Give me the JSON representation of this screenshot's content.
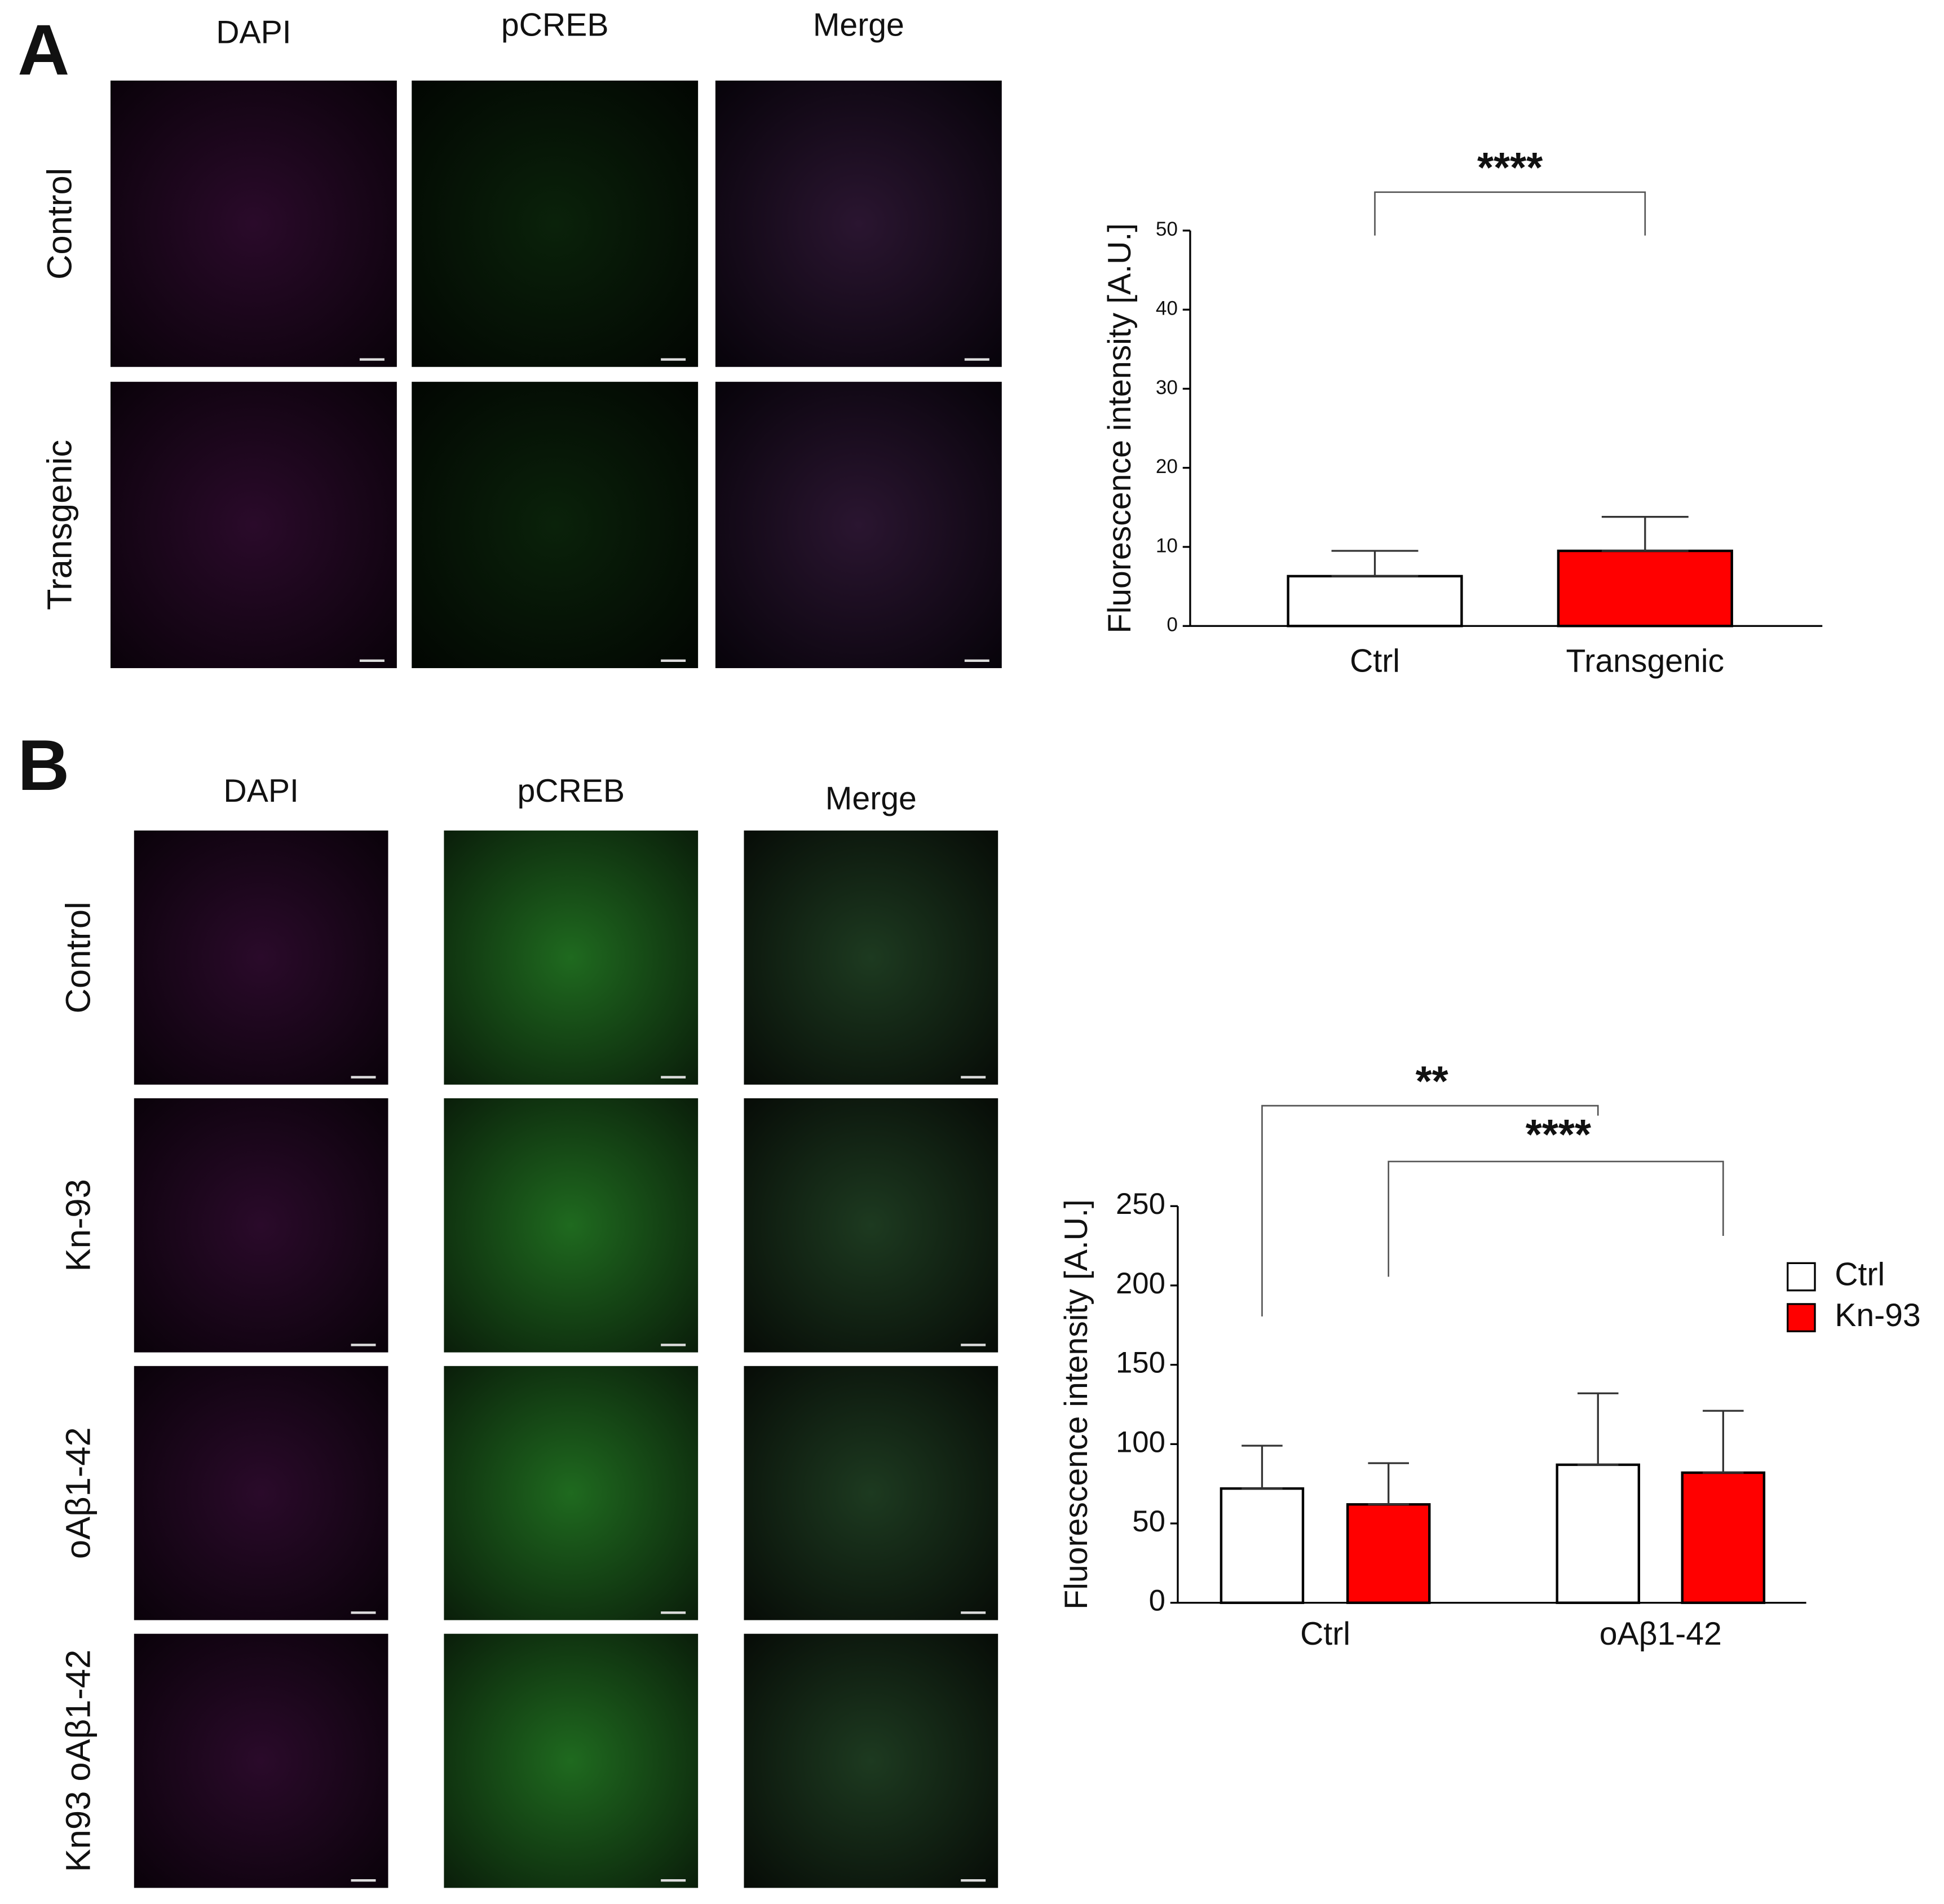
{
  "panels": [
    {
      "label": "A",
      "columns": [
        "DAPI",
        "pCREB",
        "Merge"
      ],
      "rows": [
        "Control",
        "Transgenic"
      ]
    },
    {
      "label": "B",
      "columns": [
        "DAPI",
        "pCREB",
        "Merge"
      ],
      "rows": [
        "Control",
        "Kn-93",
        "oAβ1-42",
        "Kn93 oAβ1-42"
      ]
    }
  ],
  "chart_data": [
    {
      "type": "bar",
      "ylabel": "Fluorescence intensity [A.U.]",
      "categories": [
        "Ctrl",
        "Transgenic"
      ],
      "values": [
        6.3,
        9.5
      ],
      "errors": [
        3.2,
        4.3
      ],
      "colors": [
        "#ffffff",
        "#ff0000"
      ],
      "ylim": [
        0,
        50
      ],
      "yticks": [
        0,
        10,
        20,
        30,
        40,
        50
      ],
      "annotations": [
        "****"
      ]
    },
    {
      "type": "grouped_bar",
      "ylabel": "Fluorescence intensity [A.U.]",
      "categories": [
        "Ctrl",
        "oAβ1-42"
      ],
      "series": [
        {
          "name": "Ctrl",
          "color": "#ffffff",
          "values": [
            72,
            87
          ],
          "errors": [
            27,
            45
          ]
        },
        {
          "name": "Kn-93",
          "color": "#ff0000",
          "values": [
            62,
            82
          ],
          "errors": [
            26,
            39
          ]
        }
      ],
      "ylim": [
        0,
        250
      ],
      "yticks": [
        0,
        50,
        100,
        150,
        200,
        250
      ],
      "legend": "right",
      "annotations": [
        "**",
        "****"
      ]
    }
  ]
}
